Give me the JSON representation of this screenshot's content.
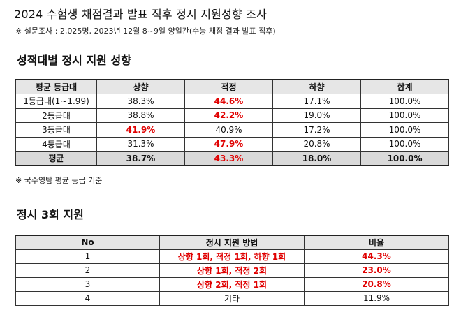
{
  "header": {
    "title": "2024 수험생 채점결과 발표 직후 정시 지원성향 조사",
    "survey_note": "※ 설문조사 : 2,025명, 2023년 12월 8~9일 양일간(수능 채점 결과 발표 직후)"
  },
  "section1": {
    "title": "성적대별 정시 지원 성향",
    "columns": [
      "평균 등급대",
      "상향",
      "적정",
      "하향",
      "합계"
    ],
    "rows": [
      {
        "grade": "1등급대(1~1.99)",
        "up": "38.3%",
        "fit": "44.6%",
        "down": "17.1%",
        "total": "100.0%",
        "highlight": "fit"
      },
      {
        "grade": "2등급대",
        "up": "38.8%",
        "fit": "42.2%",
        "down": "19.0%",
        "total": "100.0%",
        "highlight": "fit"
      },
      {
        "grade": "3등급대",
        "up": "41.9%",
        "fit": "40.9%",
        "down": "17.2%",
        "total": "100.0%",
        "highlight": "up"
      },
      {
        "grade": "4등급대",
        "up": "31.3%",
        "fit": "47.9%",
        "down": "20.8%",
        "total": "100.0%",
        "highlight": "fit"
      }
    ],
    "average": {
      "grade": "평균",
      "up": "38.7%",
      "fit": "43.3%",
      "down": "18.0%",
      "total": "100.0%",
      "highlight": "fit"
    },
    "footnote": "※ 국수영탐 평균 등급 기준"
  },
  "section2": {
    "title": "정시 3회 지원",
    "columns": [
      "No",
      "정시 지원 방법",
      "비율"
    ],
    "rows": [
      {
        "no": "1",
        "method": "상향 1회, 적정 1회, 하향 1회",
        "ratio": "44.3%",
        "highlight": true
      },
      {
        "no": "2",
        "method": "상향 1회, 적정 2회",
        "ratio": "23.0%",
        "highlight": true
      },
      {
        "no": "3",
        "method": "상향 2회, 적정 1회",
        "ratio": "20.8%",
        "highlight": true
      },
      {
        "no": "4",
        "method": "기타",
        "ratio": "11.9%",
        "highlight": false
      }
    ]
  },
  "colors": {
    "highlight": "#e00000",
    "header_bg": "#e6e6e6",
    "average_bg": "#d9d9d9"
  }
}
